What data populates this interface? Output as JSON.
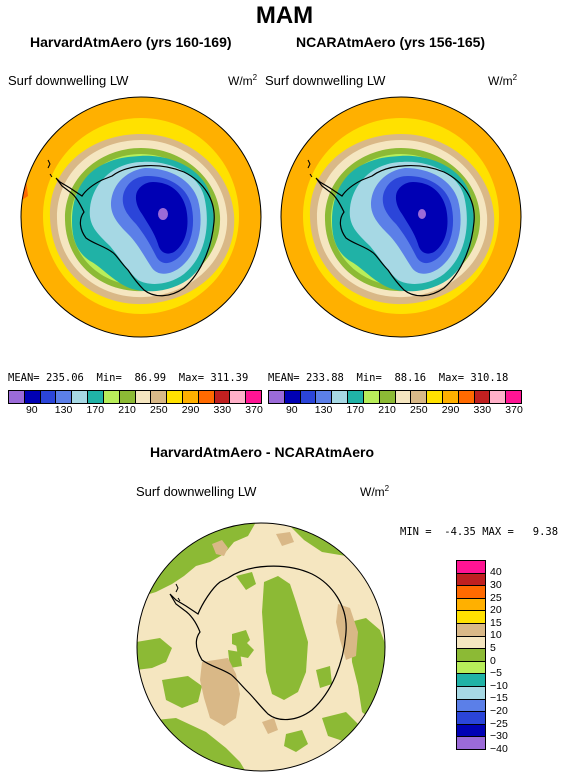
{
  "season": "MAM",
  "left_panel": {
    "title": "HarvardAtmAero (yrs 160-169)",
    "variable": "Surf downwelling LW",
    "units_base": "W/m",
    "units_exp": "2",
    "mean_label": "MEAN=",
    "mean": "235.06",
    "min_label": "Min=",
    "min": "86.99",
    "max_label": "Max=",
    "max": "311.39"
  },
  "right_panel": {
    "title": "NCARAtmAero (yrs 156-165)",
    "variable": "Surf downwelling LW",
    "units_base": "W/m",
    "units_exp": "2",
    "mean_label": "MEAN=",
    "mean": "233.88",
    "min_label": "Min=",
    "min": "88.16",
    "max_label": "Max=",
    "max": "310.18"
  },
  "abs_colorbar": {
    "colors": [
      "#9b6bd8",
      "#0000b4",
      "#2b45d9",
      "#5b7fe8",
      "#a6d8e4",
      "#20b2a6",
      "#b8ee5a",
      "#8cba35",
      "#f5e6c0",
      "#d9b887",
      "#ffe100",
      "#ffb000",
      "#ff6a00",
      "#c02020",
      "#ffb0c8",
      "#ff1493"
    ],
    "labels": [
      "90",
      "130",
      "170",
      "210",
      "250",
      "290",
      "330",
      "370"
    ]
  },
  "diff_panel": {
    "title": "HarvardAtmAero - NCARAtmAero",
    "variable": "Surf downwelling LW",
    "units_base": "W/m",
    "units_exp": "2",
    "min_label": "MIN =",
    "min": "-4.35",
    "max_label": "MAX =",
    "max": "9.38"
  },
  "diff_colorbar": {
    "colors": [
      "#ff1493",
      "#c02020",
      "#ff6a00",
      "#ffb000",
      "#ffe100",
      "#d9b887",
      "#f5e6c0",
      "#8cba35",
      "#b8ee5a",
      "#20b2a6",
      "#a6d8e4",
      "#5b7fe8",
      "#2b45d9",
      "#0000b4",
      "#9b6bd8"
    ],
    "labels": [
      "40",
      "30",
      "25",
      "20",
      "15",
      "10",
      "5",
      "0",
      "−5",
      "−10",
      "−15",
      "−20",
      "−25",
      "−30",
      "−40"
    ]
  }
}
